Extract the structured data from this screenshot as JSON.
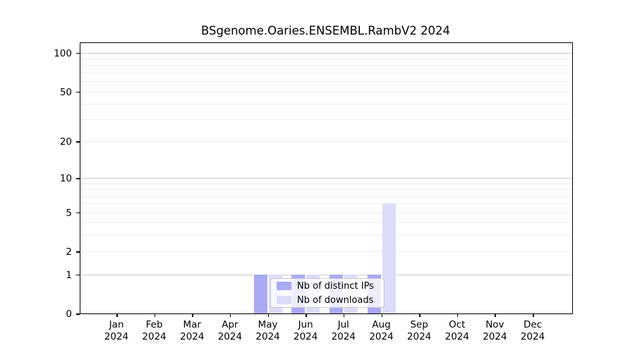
{
  "title": "BSgenome.Oaries.ENSEMBL.RambV2 2024",
  "colors": {
    "distinct_ips": "#a9a9f4",
    "downloads": "#dcdcf9",
    "grid_minor": "#ededed",
    "grid_major": "#c9c9c9",
    "axis": "#000000"
  },
  "legend": {
    "items": [
      {
        "label": "Nb of distinct IPs",
        "color_key": "distinct_ips"
      },
      {
        "label": "Nb of downloads",
        "color_key": "downloads"
      }
    ]
  },
  "y_axis": {
    "tick_values": [
      0,
      1,
      2,
      5,
      10,
      20,
      50,
      100
    ],
    "major_gridlines": [
      1,
      10,
      100
    ],
    "minor_gridlines": [
      2,
      3,
      4,
      5,
      6,
      7,
      8,
      9,
      20,
      30,
      40,
      50,
      60,
      70,
      80,
      90
    ],
    "scale": "log1p"
  },
  "x_axis": {
    "months": [
      {
        "month": "Jan",
        "year": "2024"
      },
      {
        "month": "Feb",
        "year": "2024"
      },
      {
        "month": "Mar",
        "year": "2024"
      },
      {
        "month": "Apr",
        "year": "2024"
      },
      {
        "month": "May",
        "year": "2024"
      },
      {
        "month": "Jun",
        "year": "2024"
      },
      {
        "month": "Jul",
        "year": "2024"
      },
      {
        "month": "Aug",
        "year": "2024"
      },
      {
        "month": "Sep",
        "year": "2024"
      },
      {
        "month": "Oct",
        "year": "2024"
      },
      {
        "month": "Nov",
        "year": "2024"
      },
      {
        "month": "Dec",
        "year": "2024"
      }
    ]
  },
  "chart_data": {
    "type": "bar",
    "title": "BSgenome.Oaries.ENSEMBL.RambV2 2024",
    "categories": [
      "Jan 2024",
      "Feb 2024",
      "Mar 2024",
      "Apr 2024",
      "May 2024",
      "Jun 2024",
      "Jul 2024",
      "Aug 2024",
      "Sep 2024",
      "Oct 2024",
      "Nov 2024",
      "Dec 2024"
    ],
    "series": [
      {
        "name": "Nb of distinct IPs",
        "values": [
          0,
          0,
          0,
          0,
          1,
          1,
          1,
          1,
          0,
          0,
          0,
          0
        ]
      },
      {
        "name": "Nb of downloads",
        "values": [
          0,
          0,
          0,
          0,
          1,
          1,
          1,
          6,
          0,
          0,
          0,
          0
        ]
      }
    ],
    "xlabel": "",
    "ylabel": "",
    "yscale": "log1p",
    "ylim": [
      0,
      119
    ],
    "grid": true,
    "legend_position": "lower-center-inside"
  }
}
